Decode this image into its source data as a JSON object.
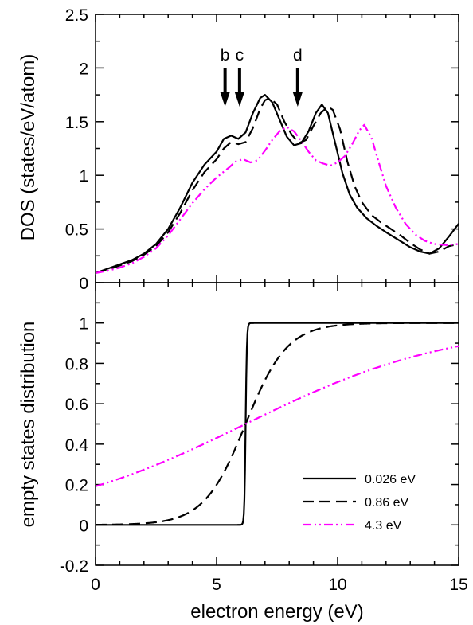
{
  "chart_data": [
    {
      "type": "line",
      "panel": "top",
      "xlabel": "",
      "ylabel": "DOS (states/eV/atom)",
      "xlim": [
        0,
        15
      ],
      "ylim": [
        0,
        2.5
      ],
      "xticks": [
        0,
        5,
        10,
        15
      ],
      "yticks": [
        0,
        0.5,
        1,
        1.5,
        2,
        2.5
      ],
      "ytick_labels": [
        "0",
        "0.5",
        "1",
        "1.5",
        "2",
        "2.5"
      ],
      "annotations": [
        {
          "label": "b",
          "x": 5.35
        },
        {
          "label": "c",
          "x": 5.95
        },
        {
          "label": "d",
          "x": 8.35
        }
      ],
      "series": [
        {
          "color": "#000000",
          "dash": "solid",
          "x": [
            0,
            0.5,
            1,
            1.5,
            2,
            2.5,
            3,
            3.5,
            4,
            4.5,
            5,
            5.3,
            5.6,
            5.9,
            6.2,
            6.5,
            6.8,
            7.0,
            7.3,
            7.6,
            7.9,
            8.2,
            8.5,
            8.8,
            9.1,
            9.35,
            9.6,
            9.9,
            10.2,
            10.5,
            10.8,
            11.2,
            11.6,
            12.0,
            12.5,
            13.0,
            13.4,
            13.8,
            14.2,
            14.6,
            15
          ],
          "y": [
            0.09,
            0.13,
            0.17,
            0.21,
            0.27,
            0.36,
            0.5,
            0.7,
            0.93,
            1.1,
            1.22,
            1.34,
            1.37,
            1.34,
            1.4,
            1.58,
            1.72,
            1.75,
            1.68,
            1.52,
            1.36,
            1.28,
            1.3,
            1.41,
            1.58,
            1.66,
            1.58,
            1.3,
            1.02,
            0.82,
            0.7,
            0.6,
            0.53,
            0.47,
            0.4,
            0.33,
            0.29,
            0.27,
            0.32,
            0.43,
            0.55
          ]
        },
        {
          "color": "#000000",
          "dash": "dashed",
          "x": [
            0,
            0.5,
            1,
            1.5,
            2,
            2.5,
            3,
            3.5,
            4,
            4.5,
            5,
            5.3,
            5.6,
            5.9,
            6.2,
            6.5,
            6.8,
            7.0,
            7.2,
            7.5,
            7.8,
            8.1,
            8.4,
            8.7,
            9.0,
            9.3,
            9.6,
            9.8,
            10.1,
            10.4,
            10.7,
            11.0,
            11.4,
            11.8,
            12.2,
            12.6,
            13.0,
            13.4,
            13.8,
            14.2,
            14.6,
            15
          ],
          "y": [
            0.09,
            0.12,
            0.16,
            0.2,
            0.26,
            0.34,
            0.47,
            0.65,
            0.86,
            1.03,
            1.15,
            1.25,
            1.31,
            1.29,
            1.31,
            1.44,
            1.62,
            1.7,
            1.72,
            1.66,
            1.5,
            1.38,
            1.3,
            1.33,
            1.46,
            1.58,
            1.64,
            1.61,
            1.43,
            1.13,
            0.9,
            0.75,
            0.63,
            0.56,
            0.5,
            0.44,
            0.37,
            0.31,
            0.27,
            0.29,
            0.34,
            0.36
          ]
        },
        {
          "color": "#ff00ff",
          "dash": "dash-dot-dot",
          "x": [
            0,
            0.5,
            1,
            1.5,
            2,
            2.5,
            3,
            3.5,
            4,
            4.5,
            5,
            5.5,
            5.8,
            6.1,
            6.4,
            6.7,
            7.0,
            7.3,
            7.6,
            7.9,
            8.2,
            8.5,
            8.8,
            9.1,
            9.4,
            9.7,
            10.0,
            10.3,
            10.6,
            10.9,
            11.1,
            11.4,
            11.7,
            12.0,
            12.4,
            12.8,
            13.2,
            13.6,
            14.0,
            14.5,
            15
          ],
          "y": [
            0.09,
            0.11,
            0.14,
            0.18,
            0.24,
            0.32,
            0.44,
            0.59,
            0.74,
            0.87,
            0.98,
            1.07,
            1.13,
            1.15,
            1.12,
            1.14,
            1.23,
            1.33,
            1.41,
            1.45,
            1.41,
            1.32,
            1.22,
            1.14,
            1.11,
            1.09,
            1.12,
            1.18,
            1.29,
            1.42,
            1.47,
            1.35,
            1.12,
            0.9,
            0.7,
            0.55,
            0.45,
            0.39,
            0.36,
            0.35,
            0.36
          ]
        }
      ]
    },
    {
      "type": "line",
      "panel": "bottom",
      "xlabel": "electron energy (eV)",
      "ylabel": "empty states distribution",
      "xlim": [
        0,
        15
      ],
      "ylim": [
        -0.2,
        1.2
      ],
      "xticks": [
        0,
        5,
        10,
        15
      ],
      "xtick_labels": [
        "0",
        "5",
        "10",
        "15"
      ],
      "yticks": [
        -0.2,
        0,
        0.2,
        0.4,
        0.6,
        0.8,
        1
      ],
      "ytick_labels": [
        "-0.2",
        "0",
        "0.2",
        "0.4",
        "0.6",
        "0.8",
        "1"
      ],
      "legend_position": "lower-right",
      "series": [
        {
          "name": "0.026 eV",
          "color": "#000000",
          "dash": "solid",
          "kind": "fermi",
          "mu": 6.2,
          "kT": 0.026
        },
        {
          "name": "0.86 eV",
          "color": "#000000",
          "dash": "dashed",
          "kind": "fermi",
          "mu": 6.2,
          "kT": 0.86
        },
        {
          "name": "4.3 eV",
          "color": "#ff00ff",
          "dash": "dash-dot-dot",
          "kind": "fermi",
          "mu": 6.2,
          "kT": 4.3
        }
      ]
    }
  ]
}
